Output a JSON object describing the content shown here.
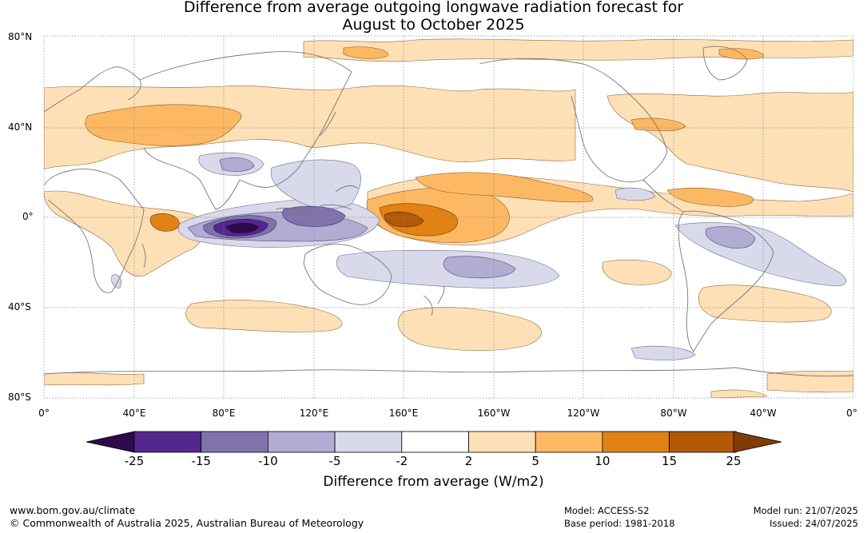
{
  "title": {
    "line1": "Difference from average outgoing longwave radiation forecast for",
    "line2": "August to October 2025"
  },
  "map": {
    "lat_labels": [
      "80°N",
      "40°N",
      "0°",
      "40°S",
      "80°S"
    ],
    "lon_labels": [
      "0°",
      "40°E",
      "80°E",
      "120°E",
      "160°E",
      "160°W",
      "120°W",
      "80°W",
      "40°W",
      "0°"
    ]
  },
  "colorbar": {
    "title": "Difference from average (W/m2)",
    "ticks": [
      "-25",
      "-15",
      "-10",
      "-5",
      "-2",
      "2",
      "5",
      "10",
      "15",
      "25"
    ],
    "colors": [
      "#2d0a4a",
      "#54278f",
      "#8073ac",
      "#b2abd2",
      "#d8daeb",
      "#ffffff",
      "#fee0b6",
      "#fdb863",
      "#e08214",
      "#b35806",
      "#7f3b08"
    ]
  },
  "footer": {
    "website": "www.bom.gov.au/climate",
    "copyright": "© Commonwealth of Australia 2025, Australian Bureau of Meteorology",
    "model": "Model: ACCESS-S2",
    "base_period": "Base period: 1981-2018",
    "model_run": "Model run: 21/07/2025",
    "issued": "Issued: 24/07/2025"
  }
}
